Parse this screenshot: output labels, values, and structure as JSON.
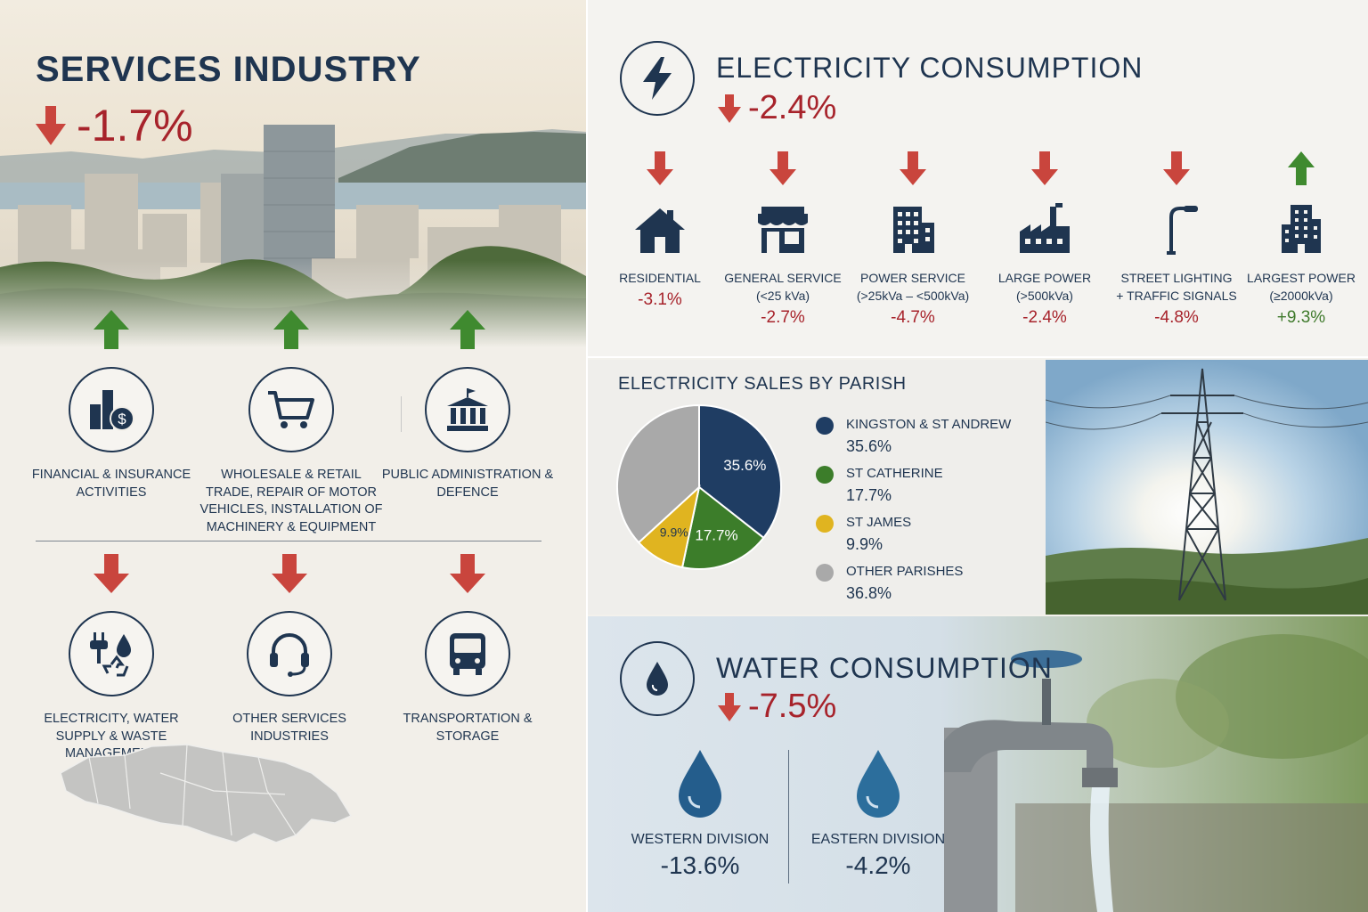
{
  "services": {
    "title": "SERVICES INDUSTRY",
    "change": "-1.7%",
    "up_sectors": [
      {
        "label": "FINANCIAL & INSURANCE ACTIVITIES",
        "icon": "finance-dollar-icon"
      },
      {
        "label": "WHOLESALE & RETAIL TRADE, REPAIR OF MOTOR VEHICLES, INSTALLATION OF MACHINERY & EQUIPMENT",
        "icon": "shopping-cart-icon"
      },
      {
        "label": "PUBLIC ADMINISTRATION & DEFENCE",
        "icon": "government-building-icon"
      }
    ],
    "down_sectors": [
      {
        "label": "ELECTRICITY, WATER SUPPLY & WASTE MANAGEMENT",
        "icon": "utilities-icon"
      },
      {
        "label": "OTHER SERVICES INDUSTRIES",
        "icon": "headset-icon"
      },
      {
        "label": "TRANSPORTATION & STORAGE",
        "icon": "bus-icon"
      }
    ]
  },
  "electricity": {
    "title": "ELECTRICITY CONSUMPTION",
    "change": "-2.4%",
    "categories": [
      {
        "name": "RESIDENTIAL",
        "detail": "",
        "value": "-3.1%",
        "trend": "down",
        "icon": "house-icon"
      },
      {
        "name": "GENERAL SERVICE",
        "detail": "(<25 kVa)",
        "value": "-2.7%",
        "trend": "down",
        "icon": "storefront-icon"
      },
      {
        "name": "POWER SERVICE",
        "detail": "(>25kVa – <500kVa)",
        "value": "-4.7%",
        "trend": "down",
        "icon": "office-building-icon"
      },
      {
        "name": "LARGE POWER",
        "detail": "(>500kVa)",
        "value": "-2.4%",
        "trend": "down",
        "icon": "factory-icon"
      },
      {
        "name": "STREET LIGHTING",
        "detail": "+ TRAFFIC SIGNALS",
        "value": "-4.8%",
        "trend": "down",
        "icon": "street-light-icon"
      },
      {
        "name": "LARGEST POWER",
        "detail": "(≥2000kVa)",
        "value": "+9.3%",
        "trend": "up",
        "icon": "tall-building-icon"
      }
    ]
  },
  "parish": {
    "title": "ELECTRICITY SALES BY PARISH",
    "items": [
      {
        "name": "KINGSTON & ST ANDREW",
        "value": "35.6%",
        "color": "#1f3d63"
      },
      {
        "name": "ST CATHERINE",
        "value": "17.7%",
        "color": "#3c7d2a"
      },
      {
        "name": "ST JAMES",
        "value": "9.9%",
        "color": "#e0b420"
      },
      {
        "name": "OTHER PARISHES",
        "value": "36.8%",
        "color": "#a9a9a9"
      }
    ]
  },
  "chart_data": {
    "type": "pie",
    "title": "ELECTRICITY SALES BY PARISH",
    "categories": [
      "KINGSTON & ST ANDREW",
      "ST CATHERINE",
      "ST JAMES",
      "OTHER PARISHES"
    ],
    "values": [
      35.6,
      17.7,
      9.9,
      36.8
    ],
    "colors": [
      "#1f3d63",
      "#3c7d2a",
      "#e0b420",
      "#a9a9a9"
    ],
    "legend": "right"
  },
  "water": {
    "title": "WATER CONSUMPTION",
    "change": "-7.5%",
    "divisions": [
      {
        "name": "WESTERN DIVISION",
        "value": "-13.6%"
      },
      {
        "name": "EASTERN DIVISION",
        "value": "-4.2%"
      }
    ]
  },
  "colors": {
    "navy": "#1f3550",
    "red": "#a7232b",
    "green": "#3f7a2c"
  }
}
